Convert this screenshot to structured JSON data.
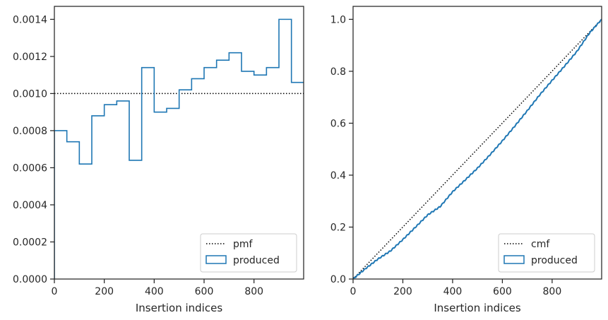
{
  "chart_data": [
    {
      "type": "histogram",
      "xlabel": "Insertion indices",
      "ylabel": "",
      "xlim": [
        0,
        999
      ],
      "ylim": [
        0,
        0.00147
      ],
      "xticks": [
        0,
        200,
        400,
        600,
        800
      ],
      "xtick_labels": [
        "0",
        "200",
        "400",
        "600",
        "800"
      ],
      "yticks": [
        0,
        0.0002,
        0.0004,
        0.0006,
        0.0008,
        0.001,
        0.0012,
        0.0014
      ],
      "ytick_labels": [
        "0.0000",
        "0.0002",
        "0.0004",
        "0.0006",
        "0.0008",
        "0.0010",
        "0.0012",
        "0.0014"
      ],
      "grid": false,
      "legend_position": "lower right",
      "colors": {
        "produced": "#1f77b4",
        "pmf": "#000000"
      },
      "bin_edges": [
        0,
        50,
        100,
        150,
        200,
        250,
        300,
        350,
        400,
        450,
        500,
        550,
        600,
        650,
        700,
        750,
        800,
        850,
        900,
        950,
        1000
      ],
      "series": [
        {
          "name": "pmf",
          "style": "dotted",
          "x": [
            0,
            999
          ],
          "y": [
            0.001,
            0.001
          ]
        },
        {
          "name": "produced",
          "style": "step",
          "values": [
            0.0008,
            0.00074,
            0.00062,
            0.00088,
            0.00094,
            0.00096,
            0.00064,
            0.00114,
            0.0009,
            0.00092,
            0.00102,
            0.00108,
            0.00114,
            0.00118,
            0.00122,
            0.00112,
            0.0011,
            0.00114,
            0.0014,
            0.00106
          ]
        }
      ]
    },
    {
      "type": "line",
      "xlabel": "Insertion indices",
      "ylabel": "",
      "xlim": [
        0,
        999
      ],
      "ylim": [
        0,
        1.05
      ],
      "xticks": [
        0,
        200,
        400,
        600,
        800
      ],
      "xtick_labels": [
        "0",
        "200",
        "400",
        "600",
        "800"
      ],
      "yticks": [
        0,
        0.2,
        0.4,
        0.6,
        0.8,
        1.0
      ],
      "ytick_labels": [
        "0.0",
        "0.2",
        "0.4",
        "0.6",
        "0.8",
        "1.0"
      ],
      "grid": false,
      "legend_position": "lower right",
      "colors": {
        "produced": "#1f77b4",
        "cmf": "#000000"
      },
      "series": [
        {
          "name": "cmf",
          "style": "dotted",
          "x": [
            0,
            999
          ],
          "y": [
            0,
            1.0
          ]
        },
        {
          "name": "produced",
          "style": "step",
          "x": [
            0,
            50,
            100,
            150,
            200,
            250,
            300,
            350,
            400,
            450,
            500,
            550,
            600,
            650,
            700,
            750,
            800,
            850,
            900,
            950,
            999
          ],
          "y": [
            0,
            0.04,
            0.077,
            0.108,
            0.152,
            0.199,
            0.247,
            0.279,
            0.336,
            0.381,
            0.427,
            0.478,
            0.532,
            0.589,
            0.648,
            0.709,
            0.765,
            0.82,
            0.877,
            0.947,
            1.0
          ]
        }
      ]
    }
  ]
}
